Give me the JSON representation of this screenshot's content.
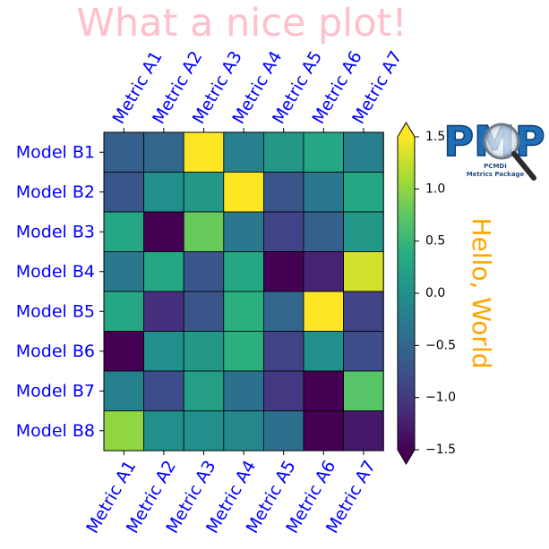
{
  "chart_data": {
    "type": "heatmap",
    "title": "What a nice plot!",
    "title_color": "#FFC0CB",
    "xlabel": "",
    "ylabel": "",
    "x_tick_labels": [
      "Metric A1",
      "Metric A2",
      "Metric A3",
      "Metric A4",
      "Metric A5",
      "Metric A6",
      "Metric A7"
    ],
    "y_tick_labels": [
      "Model B1",
      "Model B2",
      "Model B3",
      "Model B4",
      "Model B5",
      "Model B6",
      "Model B7",
      "Model B8"
    ],
    "tick_label_color": "#0000FF",
    "x_ticks_on_top_and_bottom": true,
    "values": [
      [
        -0.6,
        -0.5,
        1.5,
        -0.2,
        0.1,
        0.3,
        -0.2
      ],
      [
        -0.7,
        0.0,
        0.1,
        1.5,
        -0.7,
        -0.3,
        0.3
      ],
      [
        0.3,
        -1.5,
        0.8,
        -0.3,
        -0.9,
        -0.6,
        0.1
      ],
      [
        -0.3,
        0.3,
        -0.7,
        0.3,
        -1.5,
        -1.2,
        1.3
      ],
      [
        0.3,
        -1.1,
        -0.7,
        0.4,
        -0.5,
        1.5,
        -0.9
      ],
      [
        -1.5,
        0.0,
        0.1,
        0.4,
        -0.9,
        0.0,
        -0.8
      ],
      [
        -0.2,
        -0.8,
        0.2,
        -0.4,
        -1.0,
        -1.6,
        0.7
      ],
      [
        1.0,
        0.0,
        0.0,
        -0.1,
        -0.4,
        -1.6,
        -1.3
      ]
    ],
    "colorbar": {
      "label": "Hello, World",
      "label_color": "#FFA500",
      "range": [
        -1.5,
        1.5
      ],
      "ticks": [
        "1.5",
        "1.0",
        "0.5",
        "0.0",
        "−0.5",
        "−1.0",
        "−1.5"
      ],
      "tick_values": [
        1.5,
        1.0,
        0.5,
        0.0,
        -0.5,
        -1.0,
        -1.5
      ],
      "extend": "both",
      "colormap": "viridis"
    },
    "logo": {
      "text": "PMP",
      "caption_line1": "PCMDI",
      "caption_line2": "Metrics Package"
    }
  }
}
